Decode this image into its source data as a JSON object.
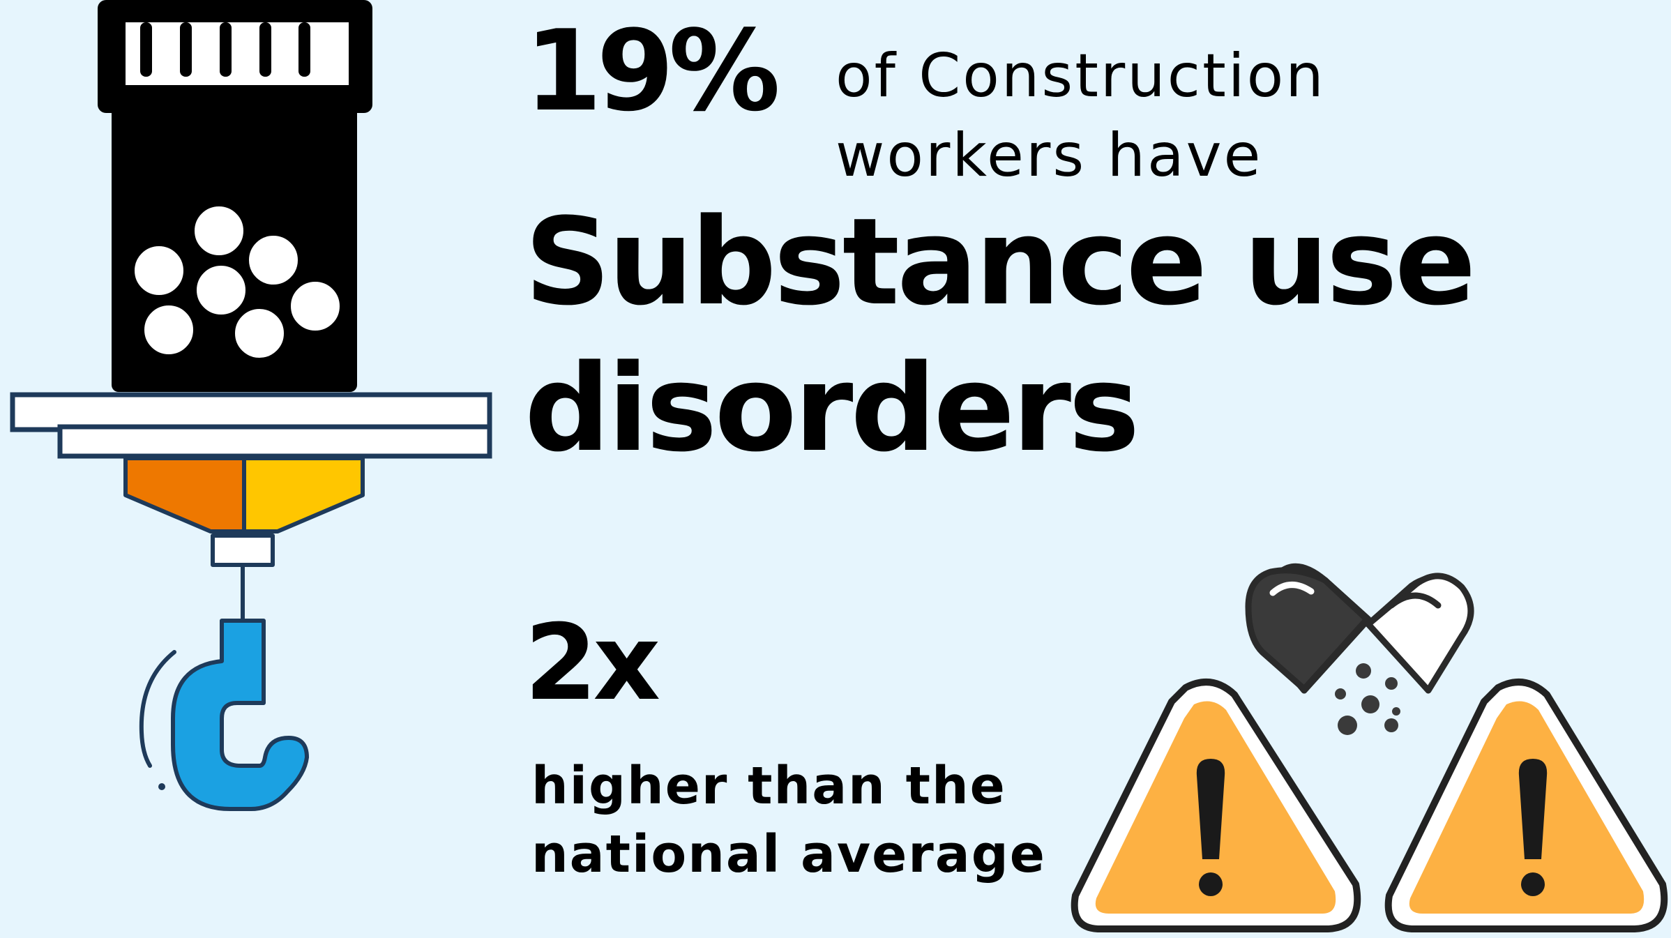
{
  "colors": {
    "background": "#e6f5fd",
    "bottle": "#000000",
    "nozzle_orange": "#ee7800",
    "nozzle_yellow": "#ffc600",
    "hook_blue": "#1ba1e2",
    "outline_navy": "#1e3a5a",
    "warning_orange": "#fdb143",
    "pill_dark": "#3a3a3a"
  },
  "icons": {
    "bottle": "pill-bottle-icon",
    "hook": "crane-hook-icon",
    "capsule": "broken-capsule-icon",
    "warning": "warning-triangle-icon"
  },
  "stat": {
    "percent": "19%",
    "line1": "of Construction",
    "line2": "workers have"
  },
  "headline": {
    "line1": "Substance use",
    "line2": "disorders"
  },
  "comparison": {
    "multiplier": "2x",
    "line1": "higher than the",
    "line2": "national average"
  }
}
